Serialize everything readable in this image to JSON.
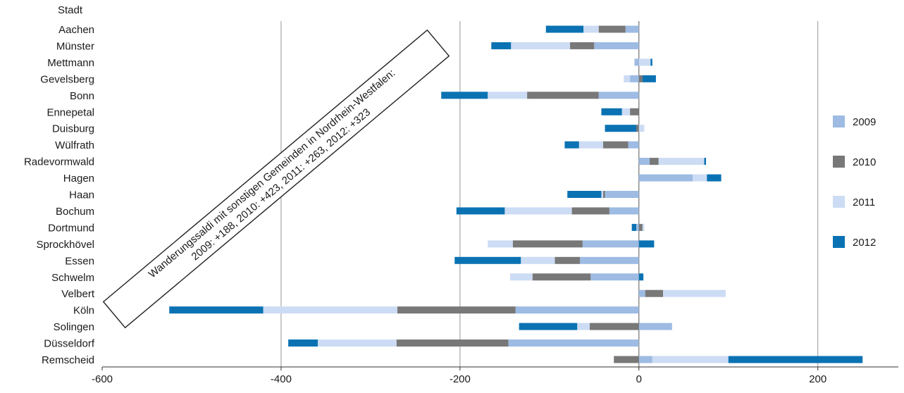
{
  "chart_data": {
    "type": "bar",
    "orientation": "horizontal",
    "stacked": true,
    "ylabel": "Stadt",
    "xlim": [
      -600,
      290
    ],
    "xticks": [
      -600,
      -400,
      -200,
      0,
      200
    ],
    "grid": true,
    "legend_position": "right",
    "categories": [
      "Aachen",
      "Münster",
      "Mettmann",
      "Gevelsberg",
      "Bonn",
      "Ennepetal",
      "Duisburg",
      "Wülfrath",
      "Radevormwald",
      "Hagen",
      "Haan",
      "Bochum",
      "Dortmund",
      "Sprockhövel",
      "Essen",
      "Schwelm",
      "Velbert",
      "Köln",
      "Solingen",
      "Düsseldorf",
      "Remscheid"
    ],
    "series": [
      {
        "name": "2009",
        "color": "#9dbbe3",
        "values": [
          -15,
          -50,
          -5,
          -10,
          -45,
          0,
          0,
          -12,
          12,
          60,
          -38,
          -33,
          -3,
          -63,
          -66,
          -54,
          7,
          -138,
          37,
          -146,
          15
        ]
      },
      {
        "name": "2010",
        "color": "#787878",
        "values": [
          -30,
          -27,
          0,
          4,
          -80,
          -10,
          -3,
          -28,
          10,
          0,
          -2,
          -42,
          4,
          -78,
          -28,
          -65,
          20,
          -132,
          -55,
          -125,
          -28
        ]
      },
      {
        "name": "2011",
        "color": "#ccdcf4",
        "values": [
          -17,
          -66,
          13,
          -7,
          -44,
          -9,
          6,
          -27,
          51,
          16,
          -2,
          -75,
          2,
          -28,
          -38,
          -25,
          70,
          -150,
          -14,
          -88,
          85
        ]
      },
      {
        "name": "2012",
        "color": "#0a72b3",
        "values": [
          -42,
          -22,
          2,
          15,
          -52,
          -23,
          -35,
          -16,
          2,
          16,
          -38,
          -54,
          -5,
          17,
          -74,
          5,
          0,
          -105,
          -65,
          -33,
          150
        ]
      }
    ],
    "annotation": {
      "line1": "Wanderungssaldi mit sonstigen Gemeinden in Nordrhein-Westfalen:",
      "line2": "2009: +188, 2010: +423, 2011: +263, 2012: +323"
    }
  }
}
